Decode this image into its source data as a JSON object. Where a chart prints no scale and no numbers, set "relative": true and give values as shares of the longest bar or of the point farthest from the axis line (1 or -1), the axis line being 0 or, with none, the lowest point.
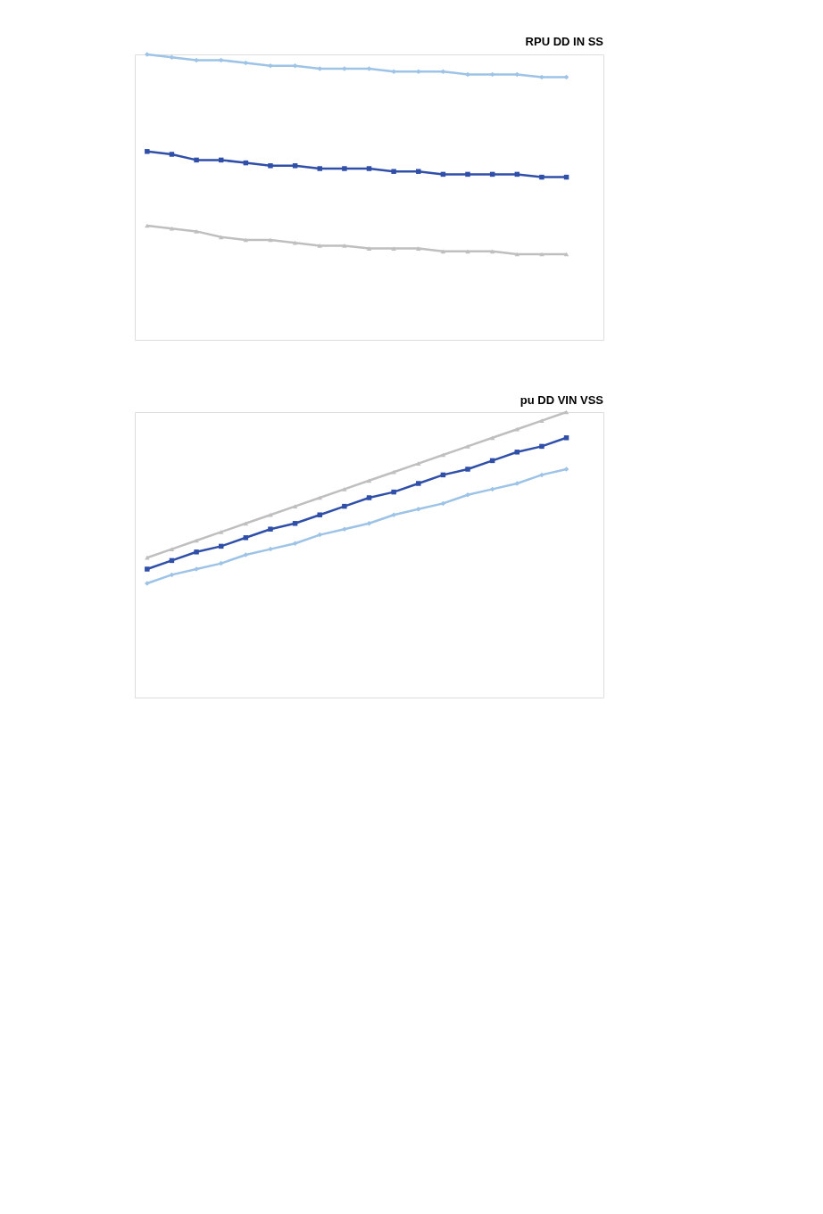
{
  "chart_data": [
    {
      "type": "line",
      "title": "RPU DD IN SS",
      "relative": true,
      "categories": [
        null,
        null,
        null,
        null,
        null,
        null,
        null,
        null,
        null,
        null,
        null,
        null,
        null,
        null,
        null,
        null,
        null,
        null
      ],
      "series": [
        {
          "color": "#9dc3e6",
          "marker": "diamond",
          "values": [
            1.0,
            0.99,
            0.98,
            0.98,
            0.97,
            0.96,
            0.96,
            0.95,
            0.95,
            0.95,
            0.94,
            0.94,
            0.94,
            0.93,
            0.93,
            0.93,
            0.92,
            0.92
          ]
        },
        {
          "color": "#2f4fa8",
          "marker": "square",
          "values": [
            0.66,
            0.65,
            0.63,
            0.63,
            0.62,
            0.61,
            0.61,
            0.6,
            0.6,
            0.6,
            0.59,
            0.59,
            0.58,
            0.58,
            0.58,
            0.58,
            0.57,
            0.57
          ]
        },
        {
          "color": "#bfbfbf",
          "marker": "triangle",
          "values": [
            0.4,
            0.39,
            0.38,
            0.36,
            0.35,
            0.35,
            0.34,
            0.33,
            0.33,
            0.32,
            0.32,
            0.32,
            0.31,
            0.31,
            0.31,
            0.3,
            0.3,
            0.3
          ]
        }
      ]
    },
    {
      "type": "line",
      "title": "pu DD VIN VSS",
      "relative": true,
      "categories": [
        null,
        null,
        null,
        null,
        null,
        null,
        null,
        null,
        null,
        null,
        null,
        null,
        null,
        null,
        null,
        null,
        null,
        null
      ],
      "series": [
        {
          "color": "#9dc3e6",
          "marker": "diamond",
          "values": [
            0.4,
            0.43,
            0.45,
            0.47,
            0.5,
            0.52,
            0.54,
            0.57,
            0.59,
            0.61,
            0.64,
            0.66,
            0.68,
            0.71,
            0.73,
            0.75,
            0.78,
            0.8
          ]
        },
        {
          "color": "#2f4fa8",
          "marker": "square",
          "values": [
            0.45,
            0.48,
            0.51,
            0.53,
            0.56,
            0.59,
            0.61,
            0.64,
            0.67,
            0.7,
            0.72,
            0.75,
            0.78,
            0.8,
            0.83,
            0.86,
            0.88,
            0.91
          ]
        },
        {
          "color": "#bfbfbf",
          "marker": "triangle",
          "values": [
            0.49,
            0.52,
            0.55,
            0.58,
            0.61,
            0.64,
            0.67,
            0.7,
            0.73,
            0.76,
            0.79,
            0.82,
            0.85,
            0.88,
            0.91,
            0.94,
            0.97,
            1.0
          ]
        }
      ]
    }
  ]
}
